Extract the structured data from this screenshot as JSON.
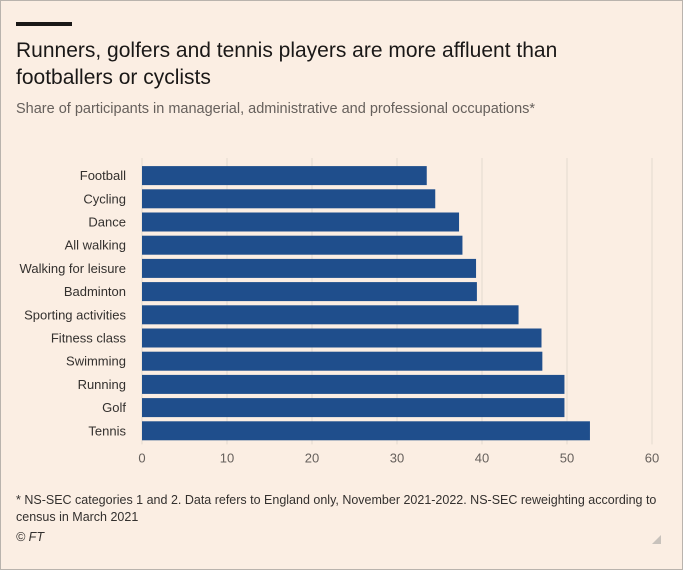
{
  "header": {
    "title": "Runners, golfers and tennis players are more affluent than footballers or cyclists",
    "subtitle": "Share of participants in managerial, administrative and professional occupations*"
  },
  "footer": {
    "footnote": "* NS-SEC categories 1 and 2. Data refers to England only, November 2021-2022. NS-SEC reweighting according to census in March 2021",
    "source": "© FT"
  },
  "colors": {
    "bar": "#1f4e8c",
    "grid": "#e3d9cf",
    "background": "#fbeee3"
  },
  "chart_data": {
    "type": "bar",
    "orientation": "horizontal",
    "categories": [
      "Football",
      "Cycling",
      "Dance",
      "All walking",
      "Walking for leisure",
      "Badminton",
      "Sporting activities",
      "Fitness class",
      "Swimming",
      "Running",
      "Golf",
      "Tennis"
    ],
    "values": [
      33.5,
      34.5,
      37.3,
      37.7,
      39.3,
      39.4,
      44.3,
      47.0,
      47.1,
      49.7,
      49.7,
      52.7
    ],
    "xlim": [
      0,
      60
    ],
    "xticks": [
      0,
      10,
      20,
      30,
      40,
      50,
      60
    ],
    "grid": true
  }
}
